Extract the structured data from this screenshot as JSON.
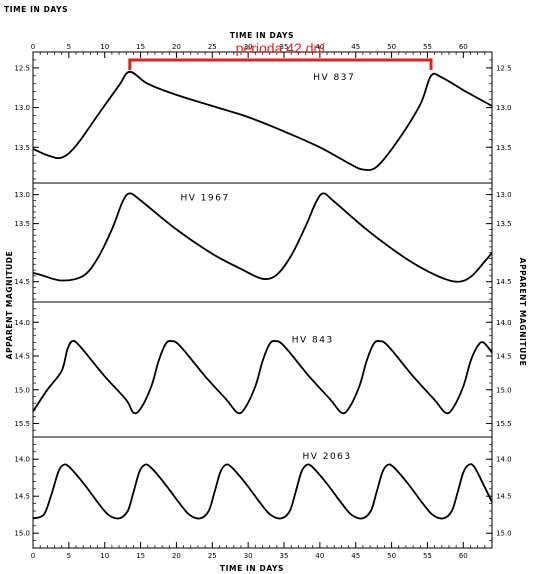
{
  "page": {
    "corner_label": "TIME IN DAYS",
    "top_axis_label": "TIME IN DAYS",
    "bottom_axis_label": "TIME IN DAYS",
    "left_axis_label": "APPARENT MAGNITUDE",
    "right_axis_label": "APPARENT MAGNITUDE"
  },
  "chart_data": {
    "type": "line",
    "xlim": [
      0,
      64
    ],
    "x_ticks": [
      0,
      5,
      10,
      15,
      20,
      25,
      30,
      35,
      40,
      45,
      50,
      55,
      60
    ],
    "x_tick_labels": [
      "0",
      "5",
      "10",
      "15",
      "20",
      "25",
      "30",
      "35",
      "40",
      "45",
      "50",
      "55",
      "60"
    ],
    "line_color": "#000000",
    "annotation": {
      "text": "perioda 42 dní",
      "x_start": 13.5,
      "x_end": 55.5,
      "magnitude": 12.4,
      "color": "#e02020"
    },
    "panels": [
      {
        "star": "HV 837",
        "label_pos": [
          42,
          12.65
        ],
        "ylim": [
          12.3,
          13.95
        ],
        "y_ticks": [
          12.5,
          13.0,
          13.5
        ],
        "y_tick_labels": [
          "12.5",
          "13.0",
          "13.5"
        ],
        "points": [
          [
            0,
            13.52
          ],
          [
            2,
            13.6
          ],
          [
            4,
            13.63
          ],
          [
            6,
            13.48
          ],
          [
            9,
            13.1
          ],
          [
            12,
            12.72
          ],
          [
            13.5,
            12.55
          ],
          [
            16,
            12.7
          ],
          [
            20,
            12.84
          ],
          [
            25,
            12.98
          ],
          [
            30,
            13.12
          ],
          [
            35,
            13.3
          ],
          [
            40,
            13.5
          ],
          [
            44,
            13.7
          ],
          [
            46,
            13.78
          ],
          [
            48,
            13.74
          ],
          [
            51,
            13.4
          ],
          [
            54,
            12.96
          ],
          [
            55.5,
            12.6
          ],
          [
            57,
            12.62
          ],
          [
            60,
            12.78
          ],
          [
            64,
            12.98
          ]
        ]
      },
      {
        "star": "HV 1967",
        "label_pos": [
          24,
          13.1
        ],
        "ylim": [
          12.8,
          14.85
        ],
        "y_ticks": [
          13.0,
          13.5,
          14.5
        ],
        "y_tick_labels": [
          "13.0",
          "13.5",
          "14.5"
        ],
        "points": [
          [
            0,
            14.35
          ],
          [
            1,
            14.38
          ],
          [
            4,
            14.48
          ],
          [
            7,
            14.4
          ],
          [
            9,
            14.1
          ],
          [
            11,
            13.6
          ],
          [
            12.5,
            13.12
          ],
          [
            13.5,
            12.98
          ],
          [
            15,
            13.1
          ],
          [
            20,
            13.6
          ],
          [
            25,
            14.02
          ],
          [
            29,
            14.28
          ],
          [
            32,
            14.45
          ],
          [
            34,
            14.38
          ],
          [
            36,
            14.05
          ],
          [
            38,
            13.55
          ],
          [
            39.5,
            13.12
          ],
          [
            40.5,
            12.98
          ],
          [
            42,
            13.12
          ],
          [
            47,
            13.65
          ],
          [
            52,
            14.1
          ],
          [
            56,
            14.38
          ],
          [
            59,
            14.5
          ],
          [
            61,
            14.42
          ],
          [
            63,
            14.15
          ],
          [
            64,
            14.0
          ]
        ]
      },
      {
        "star": "HV 843",
        "label_pos": [
          39,
          14.3
        ],
        "ylim": [
          13.7,
          15.7
        ],
        "y_ticks": [
          14.0,
          14.5,
          15.0,
          15.5
        ],
        "y_tick_labels": [
          "14.0",
          "14.5",
          "15.0",
          "15.5"
        ],
        "points": [
          [
            0,
            15.32
          ],
          [
            2,
            15.0
          ],
          [
            4,
            14.72
          ],
          [
            4.8,
            14.4
          ],
          [
            5.5,
            14.28
          ],
          [
            6.5,
            14.35
          ],
          [
            10,
            14.8
          ],
          [
            13,
            15.15
          ],
          [
            14,
            15.34
          ],
          [
            15,
            15.28
          ],
          [
            16.5,
            14.95
          ],
          [
            17.5,
            14.58
          ],
          [
            18.5,
            14.32
          ],
          [
            19.3,
            14.28
          ],
          [
            20.5,
            14.35
          ],
          [
            24,
            14.8
          ],
          [
            27,
            15.15
          ],
          [
            28.5,
            15.34
          ],
          [
            29.5,
            15.28
          ],
          [
            31,
            14.95
          ],
          [
            32,
            14.58
          ],
          [
            33,
            14.32
          ],
          [
            33.8,
            14.28
          ],
          [
            35,
            14.35
          ],
          [
            38.5,
            14.8
          ],
          [
            41.5,
            15.15
          ],
          [
            43,
            15.34
          ],
          [
            44,
            15.28
          ],
          [
            45.5,
            14.95
          ],
          [
            46.5,
            14.58
          ],
          [
            47.5,
            14.32
          ],
          [
            48.3,
            14.28
          ],
          [
            49.5,
            14.35
          ],
          [
            53,
            14.8
          ],
          [
            56,
            15.15
          ],
          [
            57.5,
            15.34
          ],
          [
            58.5,
            15.28
          ],
          [
            60,
            14.95
          ],
          [
            61,
            14.58
          ],
          [
            62,
            14.35
          ],
          [
            62.8,
            14.3
          ],
          [
            64,
            14.45
          ]
        ]
      },
      {
        "star": "HV 2063",
        "label_pos": [
          41,
          14.0
        ],
        "ylim": [
          13.7,
          15.2
        ],
        "y_ticks": [
          14.0,
          14.5,
          15.0
        ],
        "y_tick_labels": [
          "14.0",
          "14.5",
          "15.0"
        ],
        "points": [
          [
            0,
            14.8
          ],
          [
            1.5,
            14.75
          ],
          [
            2.5,
            14.5
          ],
          [
            3.5,
            14.18
          ],
          [
            4.2,
            14.08
          ],
          [
            5,
            14.1
          ],
          [
            7,
            14.32
          ],
          [
            9,
            14.58
          ],
          [
            10.5,
            14.75
          ],
          [
            12,
            14.8
          ],
          [
            13.2,
            14.7
          ],
          [
            14,
            14.45
          ],
          [
            14.8,
            14.18
          ],
          [
            15.5,
            14.08
          ],
          [
            16.3,
            14.1
          ],
          [
            18.3,
            14.32
          ],
          [
            20.3,
            14.58
          ],
          [
            21.8,
            14.75
          ],
          [
            23.3,
            14.8
          ],
          [
            24.5,
            14.7
          ],
          [
            25.3,
            14.45
          ],
          [
            26.1,
            14.18
          ],
          [
            26.8,
            14.08
          ],
          [
            27.6,
            14.1
          ],
          [
            29.6,
            14.32
          ],
          [
            31.6,
            14.58
          ],
          [
            33.1,
            14.75
          ],
          [
            34.6,
            14.8
          ],
          [
            35.8,
            14.7
          ],
          [
            36.6,
            14.45
          ],
          [
            37.4,
            14.18
          ],
          [
            38.1,
            14.08
          ],
          [
            38.9,
            14.1
          ],
          [
            40.9,
            14.32
          ],
          [
            42.9,
            14.58
          ],
          [
            44.4,
            14.75
          ],
          [
            45.9,
            14.8
          ],
          [
            47.1,
            14.7
          ],
          [
            47.9,
            14.45
          ],
          [
            48.7,
            14.18
          ],
          [
            49.4,
            14.08
          ],
          [
            50.2,
            14.1
          ],
          [
            52.2,
            14.32
          ],
          [
            54.2,
            14.58
          ],
          [
            55.7,
            14.75
          ],
          [
            57.2,
            14.8
          ],
          [
            58.4,
            14.7
          ],
          [
            59.2,
            14.45
          ],
          [
            60,
            14.18
          ],
          [
            60.7,
            14.08
          ],
          [
            61.5,
            14.1
          ],
          [
            63,
            14.38
          ],
          [
            64,
            14.58
          ]
        ]
      }
    ]
  }
}
